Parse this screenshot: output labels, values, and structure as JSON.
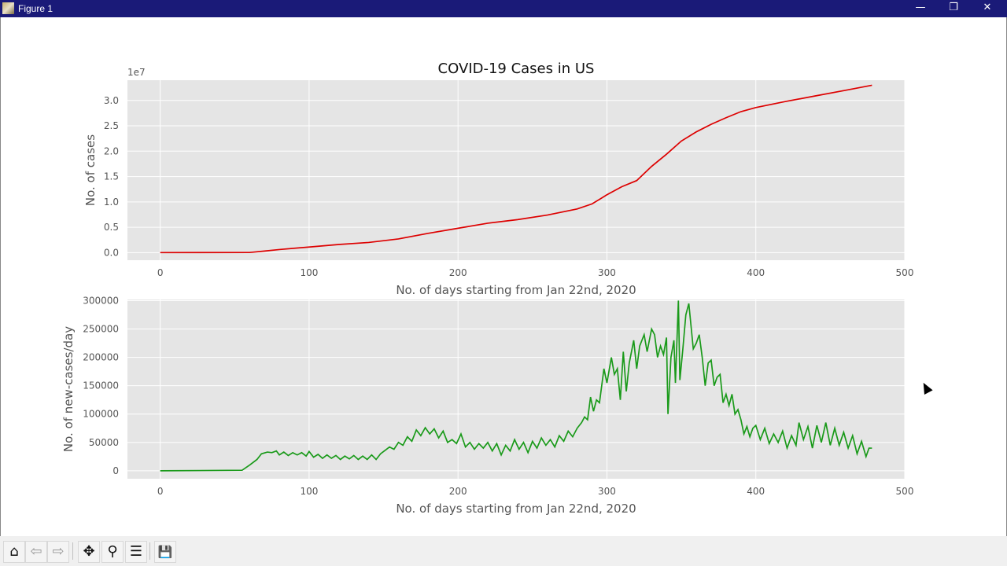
{
  "window": {
    "title": "Figure 1",
    "minimize": "—",
    "maximize": "❐",
    "close": "✕"
  },
  "toolbar": {
    "buttons": [
      {
        "icon": "home-icon",
        "glyph": "⌂"
      },
      {
        "icon": "back-arrow-icon",
        "glyph": "⇦"
      },
      {
        "icon": "forward-arrow-icon",
        "glyph": "⇨"
      },
      {
        "icon": "pan-icon",
        "glyph": "✥"
      },
      {
        "icon": "zoom-icon",
        "glyph": "⚲"
      },
      {
        "icon": "configure-subplots-icon",
        "glyph": "☰"
      },
      {
        "icon": "save-icon",
        "glyph": "💾"
      }
    ]
  },
  "chart_data": [
    {
      "type": "line",
      "title": "COVID-19 Cases in US",
      "xlabel": "No. of days starting from Jan 22nd, 2020",
      "ylabel": "No. of cases",
      "offset_label": "1e7",
      "xlim": [
        -22,
        500
      ],
      "ylim": [
        -0.15,
        3.4
      ],
      "xticks": [
        0,
        100,
        200,
        300,
        400,
        500
      ],
      "yticks": [
        0.0,
        0.5,
        1.0,
        1.5,
        2.0,
        2.5,
        3.0
      ],
      "ytick_labels": [
        "0.0",
        "0.5",
        "1.0",
        "1.5",
        "2.0",
        "2.5",
        "3.0"
      ],
      "grid": true,
      "color": "#dd0000",
      "x": [
        0,
        60,
        70,
        80,
        100,
        120,
        140,
        160,
        180,
        200,
        220,
        240,
        260,
        280,
        290,
        300,
        310,
        320,
        330,
        340,
        350,
        360,
        370,
        380,
        390,
        400,
        420,
        440,
        460,
        478
      ],
      "y": [
        0,
        0.002,
        0.03,
        0.06,
        0.11,
        0.16,
        0.2,
        0.27,
        0.38,
        0.48,
        0.58,
        0.65,
        0.74,
        0.86,
        0.96,
        1.14,
        1.3,
        1.42,
        1.7,
        1.94,
        2.2,
        2.38,
        2.53,
        2.66,
        2.78,
        2.86,
        2.98,
        3.09,
        3.2,
        3.3
      ]
    },
    {
      "type": "line",
      "title": "",
      "xlabel": "No. of days starting from Jan 22nd, 2020",
      "ylabel": "No. of new-cases/day",
      "xlim": [
        -22,
        500
      ],
      "ylim": [
        -14000,
        302000
      ],
      "xticks": [
        0,
        100,
        200,
        300,
        400,
        500
      ],
      "yticks": [
        0,
        50000,
        100000,
        150000,
        200000,
        250000,
        300000
      ],
      "grid": true,
      "color": "#1a9a1a",
      "x": [
        0,
        55,
        60,
        65,
        68,
        72,
        75,
        78,
        80,
        83,
        86,
        89,
        92,
        95,
        98,
        100,
        103,
        106,
        109,
        112,
        115,
        118,
        121,
        124,
        127,
        130,
        133,
        136,
        139,
        142,
        145,
        148,
        151,
        154,
        157,
        160,
        163,
        166,
        169,
        172,
        175,
        178,
        181,
        184,
        187,
        190,
        193,
        196,
        199,
        202,
        205,
        208,
        211,
        214,
        217,
        220,
        223,
        226,
        229,
        232,
        235,
        238,
        241,
        244,
        247,
        250,
        253,
        256,
        259,
        262,
        265,
        268,
        271,
        274,
        277,
        280,
        283,
        285,
        287,
        289,
        291,
        293,
        295,
        298,
        300,
        303,
        305,
        307,
        309,
        311,
        313,
        315,
        318,
        320,
        322,
        325,
        327,
        330,
        332,
        334,
        336,
        338,
        340,
        341,
        343,
        345,
        346,
        348,
        349,
        351,
        353,
        355,
        358,
        360,
        362,
        364,
        366,
        368,
        370,
        372,
        374,
        376,
        378,
        380,
        382,
        384,
        386,
        388,
        390,
        392,
        394,
        396,
        398,
        400,
        403,
        406,
        409,
        412,
        415,
        418,
        421,
        424,
        427,
        429,
        432,
        435,
        438,
        441,
        444,
        447,
        450,
        453,
        456,
        459,
        462,
        465,
        468,
        471,
        474,
        476,
        478
      ],
      "y": [
        0,
        1000,
        10000,
        20000,
        30000,
        33000,
        32000,
        35000,
        28000,
        33000,
        27000,
        32000,
        28000,
        32000,
        26000,
        34000,
        24000,
        29000,
        22000,
        28000,
        22000,
        27000,
        20000,
        26000,
        21000,
        27000,
        20000,
        26000,
        20000,
        28000,
        20000,
        30000,
        36000,
        42000,
        38000,
        50000,
        45000,
        60000,
        52000,
        72000,
        62000,
        76000,
        65000,
        74000,
        58000,
        70000,
        50000,
        55000,
        48000,
        65000,
        42000,
        50000,
        38000,
        48000,
        40000,
        50000,
        35000,
        48000,
        28000,
        45000,
        35000,
        55000,
        38000,
        50000,
        32000,
        52000,
        40000,
        58000,
        45000,
        55000,
        42000,
        62000,
        52000,
        70000,
        60000,
        75000,
        85000,
        95000,
        90000,
        130000,
        105000,
        125000,
        120000,
        180000,
        155000,
        200000,
        170000,
        180000,
        125000,
        210000,
        140000,
        190000,
        230000,
        180000,
        220000,
        240000,
        210000,
        250000,
        240000,
        200000,
        220000,
        205000,
        235000,
        100000,
        200000,
        230000,
        155000,
        300000,
        160000,
        215000,
        275000,
        295000,
        215000,
        225000,
        240000,
        200000,
        150000,
        190000,
        195000,
        150000,
        165000,
        170000,
        120000,
        135000,
        115000,
        135000,
        100000,
        108000,
        90000,
        65000,
        78000,
        60000,
        75000,
        80000,
        55000,
        75000,
        48000,
        65000,
        50000,
        70000,
        40000,
        62000,
        45000,
        85000,
        55000,
        78000,
        40000,
        80000,
        50000,
        85000,
        45000,
        75000,
        45000,
        68000,
        40000,
        62000,
        30000,
        52000,
        25000,
        40000,
        40000
      ]
    }
  ]
}
